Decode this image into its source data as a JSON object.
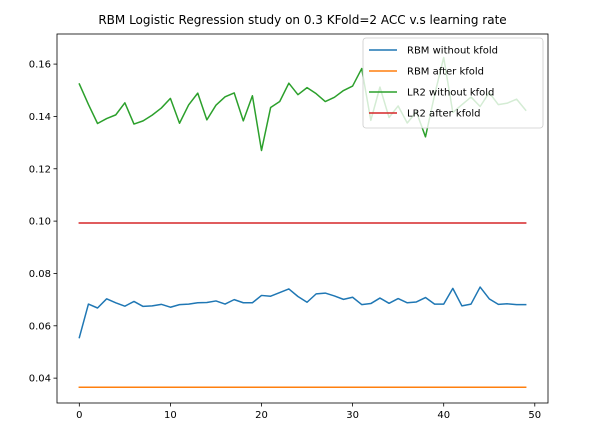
{
  "chart_data": {
    "type": "line",
    "title": "RBM Logistic Regression study on 0.3 KFold=2 ACC v.s learning rate",
    "xlabel": "",
    "ylabel": "",
    "xlim": [
      -2.45,
      51.45
    ],
    "ylim": [
      0.0305,
      0.1715
    ],
    "xticks": [
      0,
      10,
      20,
      30,
      40,
      50
    ],
    "xtick_labels": [
      "0",
      "10",
      "20",
      "30",
      "40",
      "50"
    ],
    "yticks": [
      0.04,
      0.06,
      0.08,
      0.1,
      0.12,
      0.14,
      0.16
    ],
    "ytick_labels": [
      "0.04",
      "0.06",
      "0.08",
      "0.10",
      "0.12",
      "0.14",
      "0.16"
    ],
    "grid": false,
    "legend_position": "top-right",
    "series": [
      {
        "name": "RBM without kfold",
        "color": "#1f77b4",
        "x": [
          0,
          1,
          2,
          3,
          4,
          5,
          6,
          7,
          8,
          9,
          10,
          11,
          12,
          13,
          14,
          15,
          16,
          17,
          18,
          19,
          20,
          21,
          22,
          23,
          24,
          25,
          26,
          27,
          28,
          29,
          30,
          31,
          32,
          33,
          34,
          35,
          36,
          37,
          38,
          39,
          40,
          41,
          42,
          43,
          44,
          45,
          46,
          47,
          48,
          49
        ],
        "values": [
          0.0555,
          0.0683,
          0.0668,
          0.0703,
          0.0688,
          0.0675,
          0.0693,
          0.0674,
          0.0676,
          0.0682,
          0.0671,
          0.0681,
          0.0683,
          0.0688,
          0.0689,
          0.0695,
          0.0683,
          0.07,
          0.0688,
          0.0688,
          0.0716,
          0.0713,
          0.0727,
          0.0741,
          0.0712,
          0.069,
          0.0722,
          0.0725,
          0.0714,
          0.0701,
          0.0709,
          0.0681,
          0.0685,
          0.0706,
          0.0686,
          0.0704,
          0.0688,
          0.0691,
          0.0708,
          0.0683,
          0.0683,
          0.0743,
          0.0676,
          0.0683,
          0.0748,
          0.0703,
          0.0682,
          0.0684,
          0.0681,
          0.0681
        ]
      },
      {
        "name": "RBM after kfold",
        "color": "#ff7f0e",
        "x": [
          0,
          49
        ],
        "values": [
          0.0365,
          0.0365
        ]
      },
      {
        "name": "LR2 without kfold",
        "color": "#2ca02c",
        "x": [
          0,
          1,
          2,
          3,
          4,
          5,
          6,
          7,
          8,
          9,
          10,
          11,
          12,
          13,
          14,
          15,
          16,
          17,
          18,
          19,
          20,
          21,
          22,
          23,
          24,
          25,
          26,
          27,
          28,
          29,
          30,
          31,
          32,
          33,
          34,
          35,
          36,
          37,
          38,
          39,
          40,
          41,
          42,
          43,
          44,
          45,
          46,
          47,
          48,
          49
        ],
        "values": [
          0.1524,
          0.1446,
          0.1373,
          0.1392,
          0.1406,
          0.1452,
          0.1371,
          0.1383,
          0.1405,
          0.1432,
          0.1469,
          0.1374,
          0.1444,
          0.1489,
          0.1387,
          0.1443,
          0.1475,
          0.149,
          0.1383,
          0.1479,
          0.127,
          0.1434,
          0.1457,
          0.1527,
          0.1483,
          0.151,
          0.1487,
          0.1457,
          0.1473,
          0.1499,
          0.1516,
          0.1583,
          0.1385,
          0.1512,
          0.1396,
          0.144,
          0.1375,
          0.1418,
          0.1322,
          0.1482,
          0.1625,
          0.1415,
          0.1445,
          0.1474,
          0.1438,
          0.1491,
          0.1445,
          0.1451,
          0.1466,
          0.1424
        ]
      },
      {
        "name": "LR2 after kfold",
        "color": "#d62728",
        "x": [
          0,
          49
        ],
        "values": [
          0.0993,
          0.0993
        ]
      }
    ]
  }
}
